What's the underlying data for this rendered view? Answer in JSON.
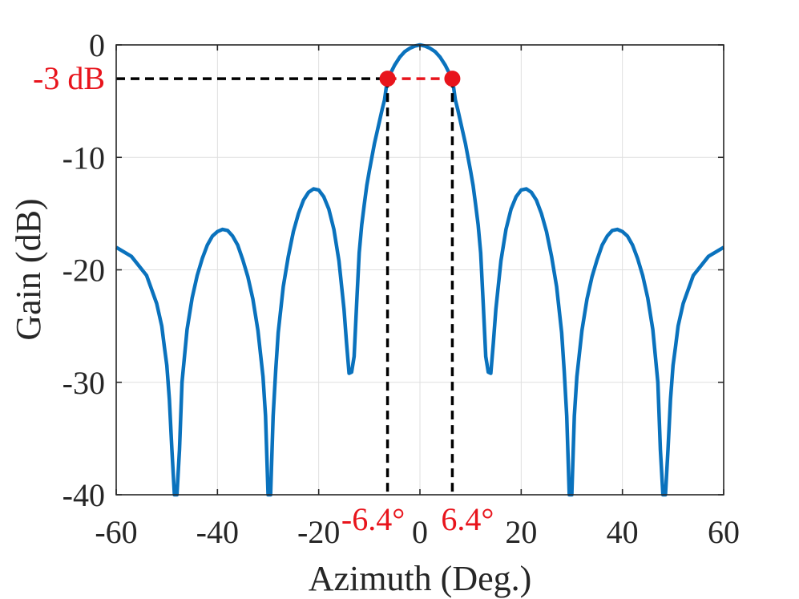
{
  "chart_data": {
    "type": "line",
    "title": "",
    "xlabel": "Azimuth (Deg.)",
    "ylabel": "Gain (dB)",
    "xlim": [
      -60,
      60
    ],
    "ylim": [
      -40,
      0
    ],
    "xticks": [
      -60,
      -40,
      -20,
      0,
      20,
      40,
      60
    ],
    "xtick_labels": [
      "-60",
      "-40",
      "-20",
      "0",
      "20",
      "40",
      "60"
    ],
    "yticks": [
      0,
      -10,
      -20,
      -30,
      -40
    ],
    "ytick_labels": [
      "0",
      "-10",
      "-20",
      "-30",
      "-40"
    ],
    "grid": true,
    "series": [
      {
        "name": "Gain",
        "color": "#0a72bd",
        "x": [
          -60,
          -57,
          -54,
          -52,
          -51,
          -50.5,
          -50,
          -49.5,
          -49,
          -48.5,
          -48,
          -47.5,
          -47,
          -46,
          -45,
          -44,
          -43,
          -42,
          -41,
          -40,
          -39,
          -38,
          -37,
          -36,
          -35,
          -34,
          -33,
          -32,
          -31,
          -30.5,
          -30,
          -29.5,
          -29,
          -28.5,
          -28,
          -27,
          -26,
          -25,
          -24,
          -23,
          -22,
          -21,
          -20,
          -19,
          -18,
          -17,
          -16,
          -15,
          -14.5,
          -14,
          -13.5,
          -13,
          -12.5,
          -12,
          -11.5,
          -11,
          -10.5,
          -10,
          -9.5,
          -9,
          -8.5,
          -8,
          -7.5,
          -7,
          -6.4,
          -6,
          -5,
          -4,
          -3,
          -2,
          -1,
          0,
          1,
          2,
          3,
          4,
          5,
          6,
          6.4,
          7,
          7.5,
          8,
          8.5,
          9,
          9.5,
          10,
          10.5,
          11,
          11.5,
          12,
          12.5,
          13,
          13.5,
          14,
          14.5,
          15,
          16,
          17,
          18,
          19,
          20,
          21,
          22,
          23,
          24,
          25,
          26,
          27,
          28,
          28.5,
          29,
          29.5,
          30,
          30.5,
          31,
          32,
          33,
          34,
          35,
          36,
          37,
          38,
          39,
          40,
          41,
          42,
          43,
          44,
          45,
          46,
          47,
          47.5,
          48,
          48.5,
          49,
          49.5,
          50,
          50.5,
          51,
          52,
          54,
          57,
          60
        ],
        "y": [
          -18,
          -18.8,
          -20.5,
          -23,
          -25,
          -26.8,
          -28.5,
          -31.5,
          -36,
          -40,
          -40,
          -36,
          -30,
          -25.3,
          -22.5,
          -20.5,
          -19,
          -17.8,
          -17,
          -16.6,
          -16.4,
          -16.5,
          -17,
          -17.8,
          -19.1,
          -20.6,
          -22.6,
          -25.4,
          -29.5,
          -33,
          -40,
          -40,
          -33,
          -29,
          -25.6,
          -21.5,
          -18.8,
          -16.6,
          -15,
          -13.8,
          -13.1,
          -12.8,
          -12.9,
          -13.5,
          -14.6,
          -16.4,
          -19.2,
          -23.5,
          -26.5,
          -29.2,
          -29.1,
          -27.7,
          -23,
          -18.5,
          -16,
          -14.2,
          -12.5,
          -11.2,
          -10,
          -8.8,
          -7.8,
          -6.8,
          -5.8,
          -4.9,
          -3,
          -2.7,
          -1.8,
          -1.1,
          -0.6,
          -0.3,
          -0.1,
          0,
          -0.1,
          -0.3,
          -0.6,
          -1.1,
          -1.8,
          -2.7,
          -3,
          -4.9,
          -5.8,
          -6.8,
          -7.8,
          -8.8,
          -10,
          -11.2,
          -12.5,
          -14.2,
          -16,
          -18.5,
          -23,
          -27.7,
          -29.1,
          -29.2,
          -26.5,
          -23.5,
          -19.2,
          -16.4,
          -14.6,
          -13.5,
          -12.9,
          -12.8,
          -13.1,
          -13.8,
          -15,
          -16.6,
          -18.8,
          -21.5,
          -25.6,
          -29,
          -33,
          -40,
          -40,
          -33,
          -29.5,
          -25.4,
          -22.6,
          -20.6,
          -19.1,
          -17.8,
          -17,
          -16.5,
          -16.4,
          -16.6,
          -17,
          -17.8,
          -19,
          -20.5,
          -22.5,
          -25.3,
          -30,
          -36,
          -40,
          -40,
          -36,
          -31.5,
          -28.5,
          -26.8,
          -25,
          -23,
          -20.5,
          -18.8,
          -18
        ]
      }
    ],
    "annotations": {
      "level_db": -3,
      "level_label": "-3 dB",
      "beam_edges_deg": [
        -6.4,
        6.4
      ],
      "beam_edge_labels": [
        "-6.4°",
        "6.4°"
      ]
    }
  }
}
